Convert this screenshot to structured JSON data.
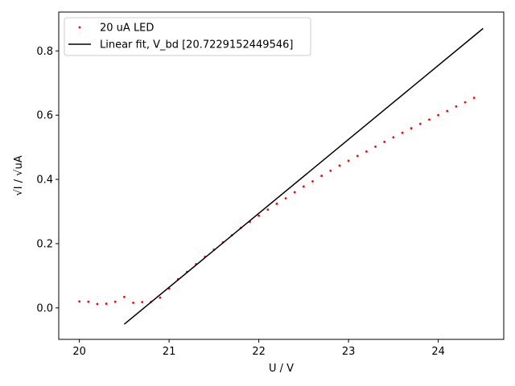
{
  "chart_data": {
    "type": "scatter",
    "xlabel": "U / V",
    "ylabel": "√I / √uA",
    "xlim": [
      19.77,
      24.73
    ],
    "ylim": [
      -0.098,
      0.921
    ],
    "xticks": [
      20,
      21,
      22,
      23,
      24
    ],
    "yticks": [
      0.0,
      0.2,
      0.4,
      0.6,
      0.8
    ],
    "ytick_labels": [
      "0.0",
      "0.2",
      "0.4",
      "0.6",
      "0.8"
    ],
    "grid": false,
    "legend_position": "top-left",
    "series": [
      {
        "name": "20 uA LED",
        "kind": "scatter",
        "color": "#ff0000",
        "x": [
          20.0,
          20.1,
          20.2,
          20.3,
          20.4,
          20.5,
          20.6,
          20.7,
          20.8,
          20.9,
          21.0,
          21.1,
          21.2,
          21.3,
          21.4,
          21.5,
          21.6,
          21.7,
          21.8,
          21.9,
          22.0,
          22.1,
          22.2,
          22.3,
          22.4,
          22.5,
          22.6,
          22.7,
          22.8,
          22.9,
          23.0,
          23.1,
          23.2,
          23.3,
          23.4,
          23.5,
          23.6,
          23.7,
          23.8,
          23.9,
          24.0,
          24.1,
          24.2,
          24.3,
          24.4
        ],
        "y": [
          0.02,
          0.019,
          0.012,
          0.013,
          0.019,
          0.034,
          0.016,
          0.018,
          0.019,
          0.032,
          0.06,
          0.089,
          0.112,
          0.136,
          0.159,
          0.181,
          0.204,
          0.226,
          0.249,
          0.268,
          0.287,
          0.306,
          0.324,
          0.341,
          0.36,
          0.378,
          0.394,
          0.411,
          0.427,
          0.443,
          0.458,
          0.473,
          0.487,
          0.502,
          0.517,
          0.531,
          0.545,
          0.559,
          0.573,
          0.586,
          0.6,
          0.613,
          0.627,
          0.64,
          0.654
        ]
      },
      {
        "name": "Linear fit, V_bd [20.7229152449546]",
        "kind": "line",
        "color": "#000000",
        "x": [
          20.5,
          24.5
        ],
        "y": [
          -0.051,
          0.87
        ]
      }
    ]
  }
}
